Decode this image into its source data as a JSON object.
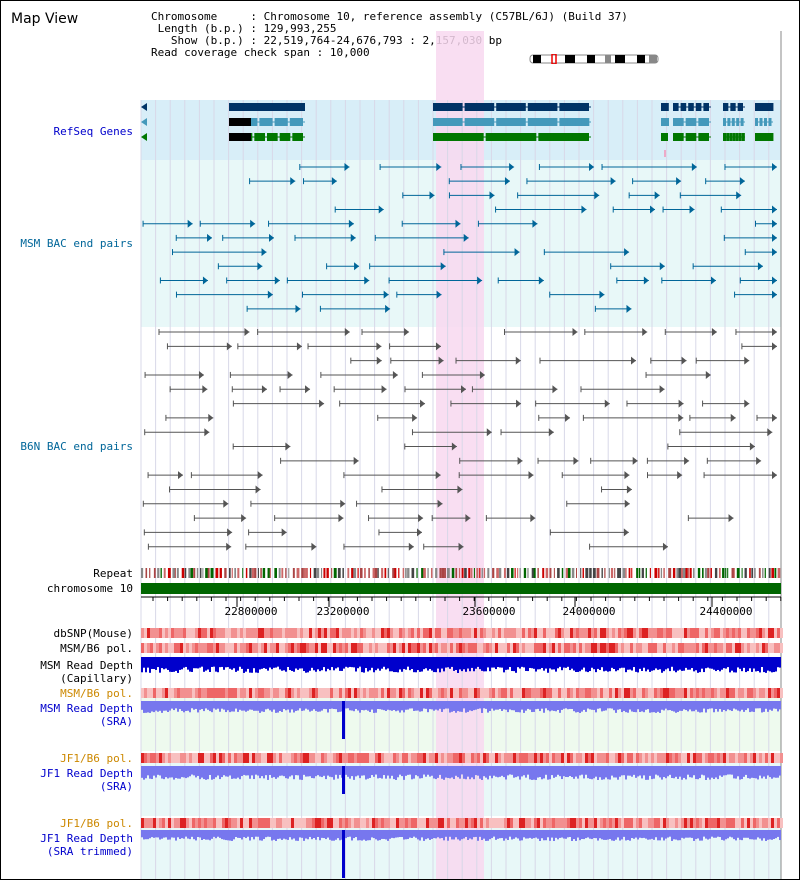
{
  "header": {
    "title": "Map View",
    "chromosome_key": "Chromosome    ",
    "chromosome_val": "Chromosome 10, reference assembly (C57BL/6J) (Build 37)",
    "length_key": " Length (b.p.)",
    "length_val": "129,993,255",
    "show_key": "   Show (b.p.)",
    "show_val": "22,519,764-24,676,793 : 2,157,030 bp",
    "coverage_key": "Read coverage check span",
    "coverage_val": "10,000"
  },
  "track_labels": {
    "refseq": "RefSeq Genes",
    "msm_bac": "MSM BAC end pairs",
    "b6n_bac": "B6N BAC end pairs",
    "repeat": "Repeat",
    "chromosome": "chromosome 10",
    "dbsnp": "dbSNP(Mouse)",
    "msm_b6_pol_1": "MSM/B6 pol.",
    "msm_depth_cap_1": "MSM Read Depth",
    "msm_depth_cap_2": "(Capillary)",
    "msm_b6_pol_2": "MSM/B6 pol.",
    "msm_depth_sra_1": "MSM Read Depth",
    "msm_depth_sra_2": "(SRA)",
    "jf1_b6_pol_1": "JF1/B6 pol.",
    "jf1_depth_sra_1": "JF1 Read Depth",
    "jf1_depth_sra_2": "(SRA)",
    "jf1_b6_pol_2": "JF1/B6 pol.",
    "jf1_depth_trim_1": "JF1 Read Depth",
    "jf1_depth_trim_2": "(SRA trimmed)"
  },
  "axis": {
    "ticks": [
      "22800000",
      "23200000",
      "23600000",
      "24000000",
      "24400000"
    ]
  },
  "colors": {
    "blue_label": "#0000cc",
    "teal_label": "#006699",
    "orange_label": "#cc8800",
    "highlight": "#f8d8f0",
    "refseq_bg": "#d8eef8",
    "msm_bg": "#e8f8f8",
    "chrom_green": "#006600",
    "depth_dark": "#0000cc",
    "depth_light": "#7777ee"
  }
}
